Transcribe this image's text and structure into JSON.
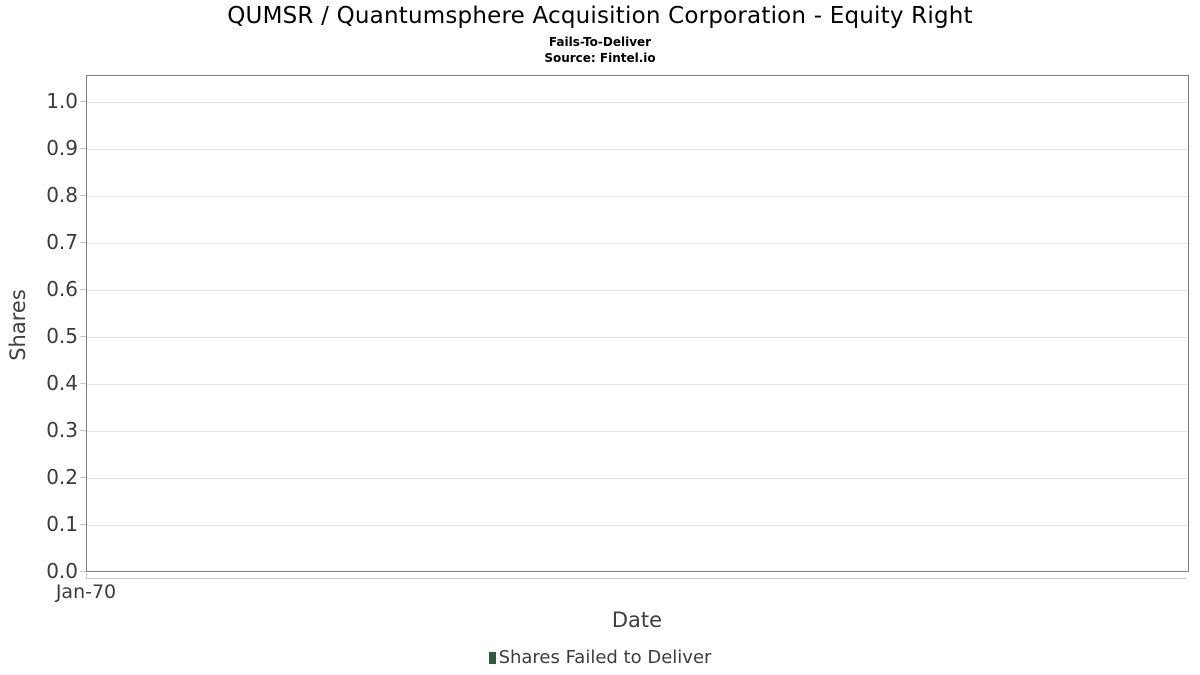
{
  "chart_data": {
    "type": "bar",
    "title": "QUMSR / Quantumsphere Acquisition Corporation - Equity Right",
    "subtitle": "Fails-To-Deliver",
    "source": "Source: Fintel.io",
    "xlabel": "Date",
    "ylabel": "Shares",
    "x_ticks": [
      "Jan-70"
    ],
    "y_ticks": [
      "0.0",
      "0.1",
      "0.2",
      "0.3",
      "0.4",
      "0.5",
      "0.6",
      "0.7",
      "0.8",
      "0.9",
      "1.0"
    ],
    "ylim": [
      0,
      1.055
    ],
    "grid": "horizontal-only",
    "legend_position": "bottom-center",
    "series": [
      {
        "name": "Shares Failed to Deliver",
        "color": "#2b5d3b",
        "x": [],
        "values": []
      }
    ],
    "colors": {
      "plot_border": "#7d7d7d",
      "gridline": "#e7e7e7",
      "tick_mark": "#c9c9c9",
      "axis_text": "#3c3c3c",
      "title_text": "#000000",
      "series_green": "#2b5d3b"
    }
  }
}
